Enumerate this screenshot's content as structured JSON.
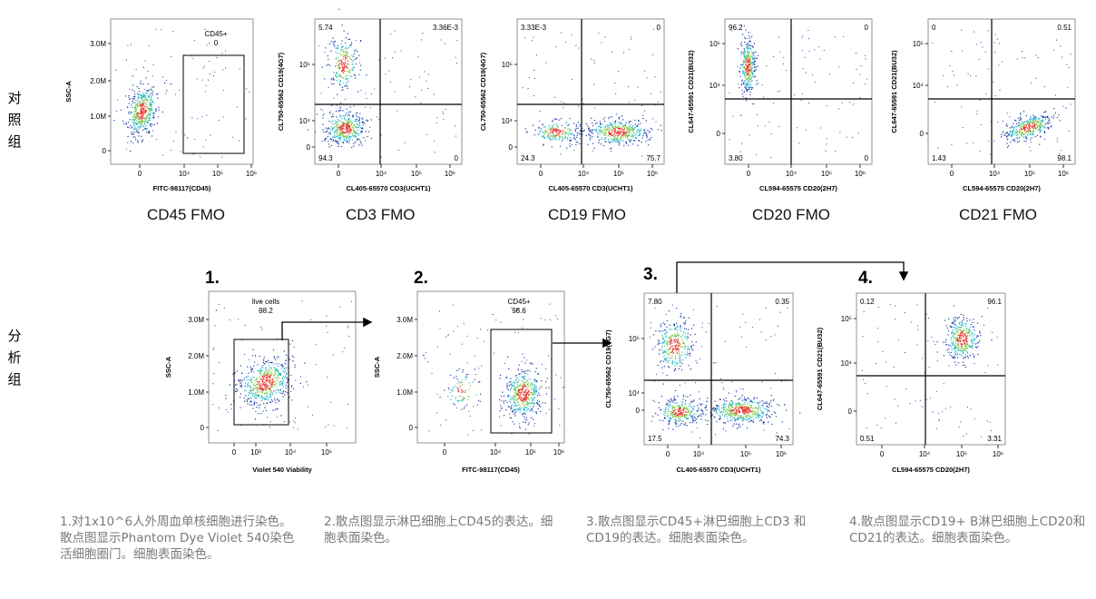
{
  "row_labels": {
    "control": "对照组",
    "analysis": "分析组"
  },
  "titles": [
    "CD45 FMO",
    "CD3 FMO",
    "CD19 FMO",
    "CD20 FMO",
    "CD21 FMO"
  ],
  "steps": [
    "1.",
    "2.",
    "3.",
    "4."
  ],
  "captions": [
    "1.对1x10^6人外周血单核细胞进行染色。散点图显示Phantom Dye Violet 540染色活细胞圈门。细胞表面染色。",
    "2.散点图显示淋巴细胞上CD45的表达。细胞表面染色。",
    "3.散点图显示CD45+淋巴细胞上CD3 和CD19的表达。细胞表面染色。",
    "4.散点图显示CD19+ B淋巴细胞上CD20和CD21的表达。细胞表面染色。"
  ],
  "colors": {
    "density_low": "#1f3ea8",
    "density_mid": "#22b5c9",
    "density_high": "#7ec84a",
    "density_peak": "#e8322a",
    "arrow": "#000000"
  },
  "chart_data": [
    {
      "id": "cd45-fmo",
      "type": "scatter",
      "plot_kind": "density-dot-plot",
      "xlabel": "FITC-98117(CD45)",
      "ylabel": "SSC-A",
      "x_ticks": [
        "0",
        "10⁴",
        "10⁵",
        "10⁶"
      ],
      "y_ticks": [
        "3.0M",
        "2.0M",
        "1.0M",
        "0"
      ],
      "gate": {
        "label": "CD45+",
        "value": "0"
      }
    },
    {
      "id": "cd3-fmo",
      "type": "scatter",
      "plot_kind": "quadrant-dot-plot",
      "xlabel": "CL405-65570 CD3(UCHT1)",
      "ylabel": "CL750-65562 CD19(4G7)",
      "x_ticks": [
        "0",
        "10⁴",
        "10⁵",
        "10⁶"
      ],
      "y_ticks": [
        "10⁵",
        "10⁴",
        "0"
      ],
      "quadrants": {
        "top_left": "5.74",
        "top_right": "3.36E-3",
        "bottom_left": "94.3",
        "bottom_right": "0"
      }
    },
    {
      "id": "cd19-fmo",
      "type": "scatter",
      "plot_kind": "quadrant-dot-plot",
      "xlabel": "CL405-65570 CD3(UCHT1)",
      "ylabel": "CL750-65562 CD19(4G7)",
      "x_ticks": [
        "0",
        "10⁴",
        "10⁵",
        "10⁶"
      ],
      "y_ticks": [
        "10⁵",
        "10⁴",
        "0"
      ],
      "quadrants": {
        "top_left": "3.33E-3",
        "top_right": "0",
        "bottom_left": "24.3",
        "bottom_right": "75.7"
      }
    },
    {
      "id": "cd20-fmo",
      "type": "scatter",
      "plot_kind": "quadrant-dot-plot",
      "xlabel": "CL594-65575 CD20(2H7)",
      "ylabel": "CL647-65591 CD21(BU32)",
      "x_ticks": [
        "0",
        "10⁴",
        "10⁵",
        "10⁶"
      ],
      "y_ticks": [
        "10⁵",
        "10⁴",
        "0"
      ],
      "quadrants": {
        "top_left": "96.2",
        "top_right": "0",
        "bottom_left": "3.80",
        "bottom_right": "0"
      }
    },
    {
      "id": "cd21-fmo",
      "type": "scatter",
      "plot_kind": "quadrant-dot-plot",
      "xlabel": "CL594-65575 CD20(2H7)",
      "ylabel": "CL647-65591 CD21(BU32)",
      "x_ticks": [
        "0",
        "10⁴",
        "10⁵",
        "10⁶"
      ],
      "y_ticks": [
        "10⁵",
        "10⁴",
        "0"
      ],
      "quadrants": {
        "top_left": "0",
        "top_right": "0.51",
        "bottom_left": "1.43",
        "bottom_right": "98.1"
      }
    },
    {
      "id": "viability",
      "type": "scatter",
      "plot_kind": "density-dot-plot",
      "xlabel": "Violet 540 Viability",
      "ylabel": "SSC-A",
      "x_ticks": [
        "0",
        "10³",
        "10⁴",
        "10⁵"
      ],
      "y_ticks": [
        "3.0M",
        "2.0M",
        "1.0M",
        "0"
      ],
      "gate": {
        "label": "live cells",
        "value": "98.2"
      }
    },
    {
      "id": "cd45-gate",
      "type": "scatter",
      "plot_kind": "density-dot-plot",
      "xlabel": "FITC-98117(CD45)",
      "ylabel": "SSC-A",
      "x_ticks": [
        "0",
        "10⁴",
        "10⁵",
        "10⁶"
      ],
      "y_ticks": [
        "3.0M",
        "2.0M",
        "1.0M",
        "0"
      ],
      "gate": {
        "label": "CD45+",
        "value": "98.6"
      }
    },
    {
      "id": "cd3-cd19",
      "type": "scatter",
      "plot_kind": "quadrant-dot-plot",
      "xlabel": "CL405-65570 CD3(UCHT1)",
      "ylabel": "CL750-65562 CD19(4G7)",
      "x_ticks": [
        "0",
        "10⁴",
        "10⁵",
        "10⁶"
      ],
      "y_ticks": [
        "10⁵",
        "10⁴",
        "0"
      ],
      "quadrants": {
        "top_left": "7.80",
        "top_right": "0.35",
        "bottom_left": "17.5",
        "bottom_right": "74.3"
      }
    },
    {
      "id": "cd20-cd21",
      "type": "scatter",
      "plot_kind": "quadrant-dot-plot",
      "xlabel": "CL594-65575 CD20(2H7)",
      "ylabel": "CL647-65591 CD21(BU32)",
      "x_ticks": [
        "0",
        "10⁴",
        "10⁵",
        "10⁶"
      ],
      "y_ticks": [
        "10⁵",
        "10⁴",
        "0"
      ],
      "quadrants": {
        "top_left": "0.12",
        "top_right": "96.1",
        "bottom_left": "0.51",
        "bottom_right": "3.31"
      }
    }
  ]
}
